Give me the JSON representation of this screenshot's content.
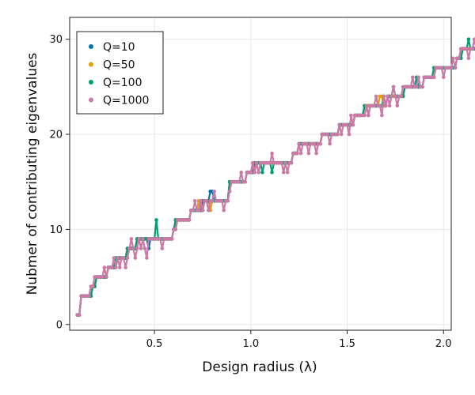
{
  "chart_data": {
    "type": "line",
    "title": "",
    "xlabel": "Design radius (λ)",
    "ylabel": "Nubmer of contributing eigenvalues",
    "xlim": [
      0.06,
      2.04
    ],
    "ylim": [
      -0.6,
      32.3
    ],
    "xticks": [
      0.5,
      1.0,
      1.5,
      2.0
    ],
    "xtick_labels": [
      "0.5",
      "1.0",
      "1.5",
      "2.0"
    ],
    "yticks": [
      0,
      10,
      20,
      30
    ],
    "ytick_labels": [
      "0",
      "10",
      "20",
      "30"
    ],
    "grid": true,
    "legend_position": "top-left",
    "x_start": 0.1,
    "x_step": 0.01,
    "series": [
      {
        "name": "Q=10",
        "color": "#0072b2",
        "values": [
          1,
          1,
          3,
          3,
          3,
          3,
          3,
          3,
          4,
          4,
          5,
          5,
          5,
          5,
          5,
          5,
          6,
          6,
          6,
          6,
          7,
          7,
          7,
          7,
          7,
          7,
          8,
          8,
          8,
          8,
          8,
          9,
          9,
          9,
          9,
          9,
          9,
          8,
          9,
          9,
          9,
          9,
          9,
          9,
          9,
          9,
          9,
          9,
          9,
          9,
          10,
          11,
          11,
          11,
          11,
          11,
          11,
          11,
          11,
          12,
          12,
          12,
          12,
          12,
          12,
          13,
          13,
          13,
          13,
          14,
          14,
          13,
          13,
          13,
          13,
          13,
          13,
          13,
          13,
          15,
          15,
          15,
          15,
          15,
          15,
          15,
          15,
          15,
          16,
          16,
          16,
          16,
          17,
          17,
          17,
          17,
          17,
          17,
          17,
          17,
          17,
          17,
          17,
          17,
          17,
          17,
          17,
          17,
          17,
          17,
          17,
          17,
          18,
          18,
          18,
          19,
          19,
          19,
          19,
          19,
          19,
          19,
          19,
          19,
          19,
          19,
          19,
          20,
          20,
          20,
          20,
          20,
          20,
          20,
          20,
          20,
          21,
          21,
          21,
          21,
          21,
          21,
          21,
          21,
          22,
          22,
          22,
          22,
          22,
          23,
          23,
          23,
          23,
          23,
          23,
          23,
          23,
          23,
          23,
          23,
          23,
          24,
          24,
          24,
          24,
          24,
          24,
          24,
          24,
          24,
          25,
          25,
          25,
          25,
          25,
          25,
          25,
          25,
          25,
          25,
          26,
          26,
          26,
          26,
          26,
          26,
          27,
          27,
          27,
          27,
          27,
          27,
          27,
          27,
          27,
          27,
          27,
          28,
          28,
          28,
          29,
          29,
          29,
          29,
          29,
          29,
          29,
          29,
          29,
          30,
          30,
          30,
          31,
          31,
          31
        ]
      },
      {
        "name": "Q=50",
        "color": "#e69f00",
        "values": [
          1,
          1,
          3,
          3,
          3,
          3,
          3,
          3,
          4,
          4,
          5,
          5,
          5,
          5,
          5,
          5,
          6,
          6,
          6,
          6,
          7,
          7,
          7,
          7,
          7,
          7,
          8,
          8,
          8,
          8,
          8,
          9,
          9,
          9,
          9,
          9,
          9,
          9,
          9,
          9,
          9,
          9,
          9,
          9,
          9,
          9,
          9,
          9,
          9,
          9,
          10,
          11,
          11,
          11,
          11,
          11,
          11,
          11,
          11,
          12,
          12,
          12,
          12,
          13,
          12,
          12,
          13,
          13,
          13,
          12,
          13,
          13,
          13,
          13,
          13,
          13,
          13,
          13,
          13,
          15,
          15,
          15,
          15,
          15,
          15,
          15,
          15,
          15,
          16,
          16,
          16,
          16,
          17,
          17,
          17,
          17,
          17,
          17,
          17,
          17,
          17,
          17,
          17,
          17,
          17,
          17,
          17,
          17,
          17,
          17,
          17,
          17,
          18,
          18,
          18,
          19,
          19,
          19,
          19,
          19,
          19,
          19,
          19,
          19,
          19,
          19,
          19,
          20,
          20,
          20,
          20,
          20,
          20,
          20,
          20,
          20,
          21,
          21,
          21,
          21,
          21,
          21,
          21,
          21,
          22,
          22,
          22,
          22,
          22,
          23,
          23,
          23,
          23,
          23,
          23,
          23,
          23,
          24,
          24,
          23,
          23,
          24,
          24,
          24,
          24,
          24,
          24,
          24,
          24,
          24,
          25,
          25,
          25,
          25,
          25,
          25,
          25,
          25,
          25,
          25,
          26,
          26,
          26,
          26,
          26,
          26,
          27,
          27,
          27,
          27,
          27,
          27,
          27,
          27,
          27,
          27,
          27,
          28,
          28,
          28,
          29,
          29,
          29,
          29,
          29,
          29,
          29,
          29,
          29,
          30,
          30,
          31,
          31,
          30,
          30
        ]
      },
      {
        "name": "Q=100",
        "color": "#009e73",
        "values": [
          1,
          1,
          3,
          3,
          3,
          3,
          3,
          3,
          4,
          4,
          5,
          5,
          5,
          5,
          5,
          5,
          6,
          6,
          6,
          6,
          7,
          7,
          7,
          7,
          7,
          7,
          8,
          8,
          8,
          8,
          8,
          9,
          9,
          9,
          9,
          9,
          9,
          9,
          9,
          9,
          9,
          11,
          9,
          9,
          9,
          9,
          9,
          9,
          9,
          9,
          10,
          11,
          11,
          11,
          11,
          11,
          11,
          11,
          11,
          12,
          12,
          12,
          12,
          12,
          12,
          12,
          13,
          13,
          13,
          13,
          13,
          13,
          13,
          13,
          13,
          13,
          13,
          13,
          13,
          15,
          15,
          15,
          15,
          15,
          15,
          15,
          15,
          15,
          16,
          16,
          16,
          16,
          17,
          17,
          17,
          17,
          16,
          17,
          17,
          17,
          17,
          16,
          17,
          17,
          17,
          17,
          17,
          17,
          17,
          17,
          17,
          17,
          18,
          18,
          18,
          19,
          19,
          19,
          19,
          19,
          19,
          19,
          19,
          19,
          19,
          19,
          19,
          20,
          20,
          20,
          20,
          20,
          20,
          20,
          20,
          20,
          21,
          21,
          21,
          21,
          21,
          21,
          21,
          21,
          22,
          22,
          22,
          22,
          22,
          23,
          23,
          22,
          23,
          23,
          23,
          23,
          23,
          23,
          23,
          24,
          23,
          24,
          24,
          24,
          25,
          24,
          24,
          24,
          24,
          24,
          25,
          25,
          25,
          25,
          25,
          25,
          26,
          25,
          25,
          25,
          26,
          26,
          26,
          26,
          26,
          27,
          27,
          27,
          27,
          27,
          27,
          27,
          27,
          27,
          27,
          27,
          27,
          28,
          28,
          28,
          29,
          29,
          29,
          30,
          29,
          29,
          29,
          29,
          29,
          30,
          30,
          30,
          30,
          30,
          30
        ]
      },
      {
        "name": "Q=1000",
        "color": "#cc79a7",
        "values": [
          1,
          1,
          3,
          3,
          3,
          3,
          3,
          4,
          4,
          5,
          5,
          5,
          5,
          5,
          6,
          5,
          6,
          6,
          6,
          7,
          6,
          7,
          6,
          7,
          7,
          6,
          7,
          8,
          9,
          8,
          7,
          8,
          9,
          8,
          9,
          8,
          7,
          9,
          9,
          9,
          9,
          9,
          9,
          9,
          8,
          9,
          9,
          9,
          9,
          9,
          10,
          10,
          11,
          11,
          11,
          11,
          11,
          11,
          11,
          12,
          12,
          13,
          12,
          12,
          13,
          12,
          13,
          13,
          12,
          13,
          13,
          14,
          13,
          13,
          13,
          13,
          12,
          13,
          13,
          14,
          15,
          15,
          15,
          15,
          15,
          16,
          15,
          15,
          16,
          16,
          16,
          17,
          16,
          17,
          16,
          17,
          17,
          17,
          17,
          17,
          17,
          18,
          17,
          17,
          17,
          17,
          17,
          16,
          17,
          16,
          17,
          17,
          18,
          18,
          18,
          19,
          18,
          19,
          19,
          19,
          18,
          19,
          19,
          19,
          18,
          19,
          19,
          20,
          20,
          20,
          20,
          19,
          20,
          20,
          20,
          20,
          21,
          20,
          21,
          21,
          21,
          20,
          22,
          21,
          22,
          22,
          22,
          22,
          22,
          22,
          23,
          22,
          23,
          23,
          23,
          24,
          23,
          23,
          22,
          24,
          23,
          24,
          23,
          24,
          25,
          24,
          23,
          24,
          24,
          25,
          25,
          25,
          25,
          25,
          26,
          25,
          25,
          26,
          25,
          25,
          26,
          26,
          26,
          26,
          26,
          26,
          27,
          27,
          27,
          27,
          26,
          27,
          27,
          27,
          27,
          28,
          27,
          28,
          28,
          29,
          29,
          29,
          29,
          28,
          29,
          29,
          30,
          29,
          29,
          29,
          30,
          31,
          30,
          30,
          29
        ]
      }
    ]
  }
}
